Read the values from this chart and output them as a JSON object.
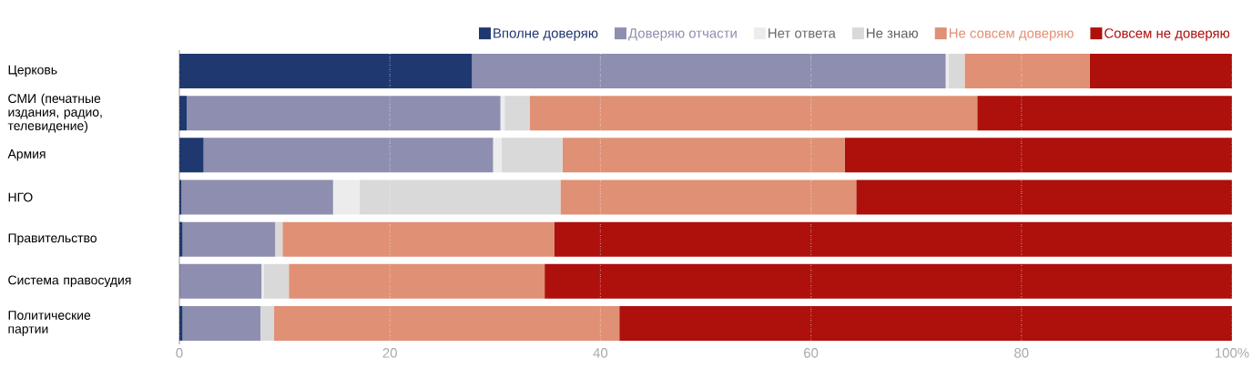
{
  "chart_data": {
    "type": "bar",
    "orientation": "horizontal",
    "stacked": true,
    "categories": [
      "Церковь",
      "СМИ (печатные издания, радио, телевидение)",
      "Армия",
      "НГО",
      "Правительство",
      "Система правосудия",
      "Политические партии"
    ],
    "series": [
      {
        "name": "Вполне доверяю",
        "color": "#203870",
        "values": [
          27.8,
          0.7,
          2.3,
          0.2,
          0.3,
          0,
          0.3
        ]
      },
      {
        "name": "Доверяю отчасти",
        "color": "#8e8eb0",
        "values": [
          45.0,
          29.8,
          27.5,
          14.4,
          8.8,
          7.8,
          7.4
        ]
      },
      {
        "name": "Нет ответа",
        "color": "#ececec",
        "values": [
          0.3,
          0.4,
          0.8,
          2.5,
          0,
          0.2,
          0
        ]
      },
      {
        "name": "Не знаю",
        "color": "#d9d9d9",
        "values": [
          1.5,
          2.4,
          5.8,
          19.1,
          0.7,
          2.4,
          1.3
        ]
      },
      {
        "name": "Не совсем доверяю",
        "color": "#e09074",
        "values": [
          11.9,
          42.5,
          26.8,
          28.1,
          25.8,
          24.3,
          32.8
        ]
      },
      {
        "name": "Совсем не доверяю",
        "color": "#ae100c",
        "values": [
          13.5,
          24.2,
          36.8,
          35.7,
          64.4,
          65.3,
          58.2
        ]
      }
    ],
    "xlim": [
      0,
      100
    ],
    "xticks": [
      0,
      20,
      40,
      60,
      80,
      {
        "value": 100,
        "label": "100%"
      }
    ],
    "grid": "x",
    "legend": "top right"
  }
}
